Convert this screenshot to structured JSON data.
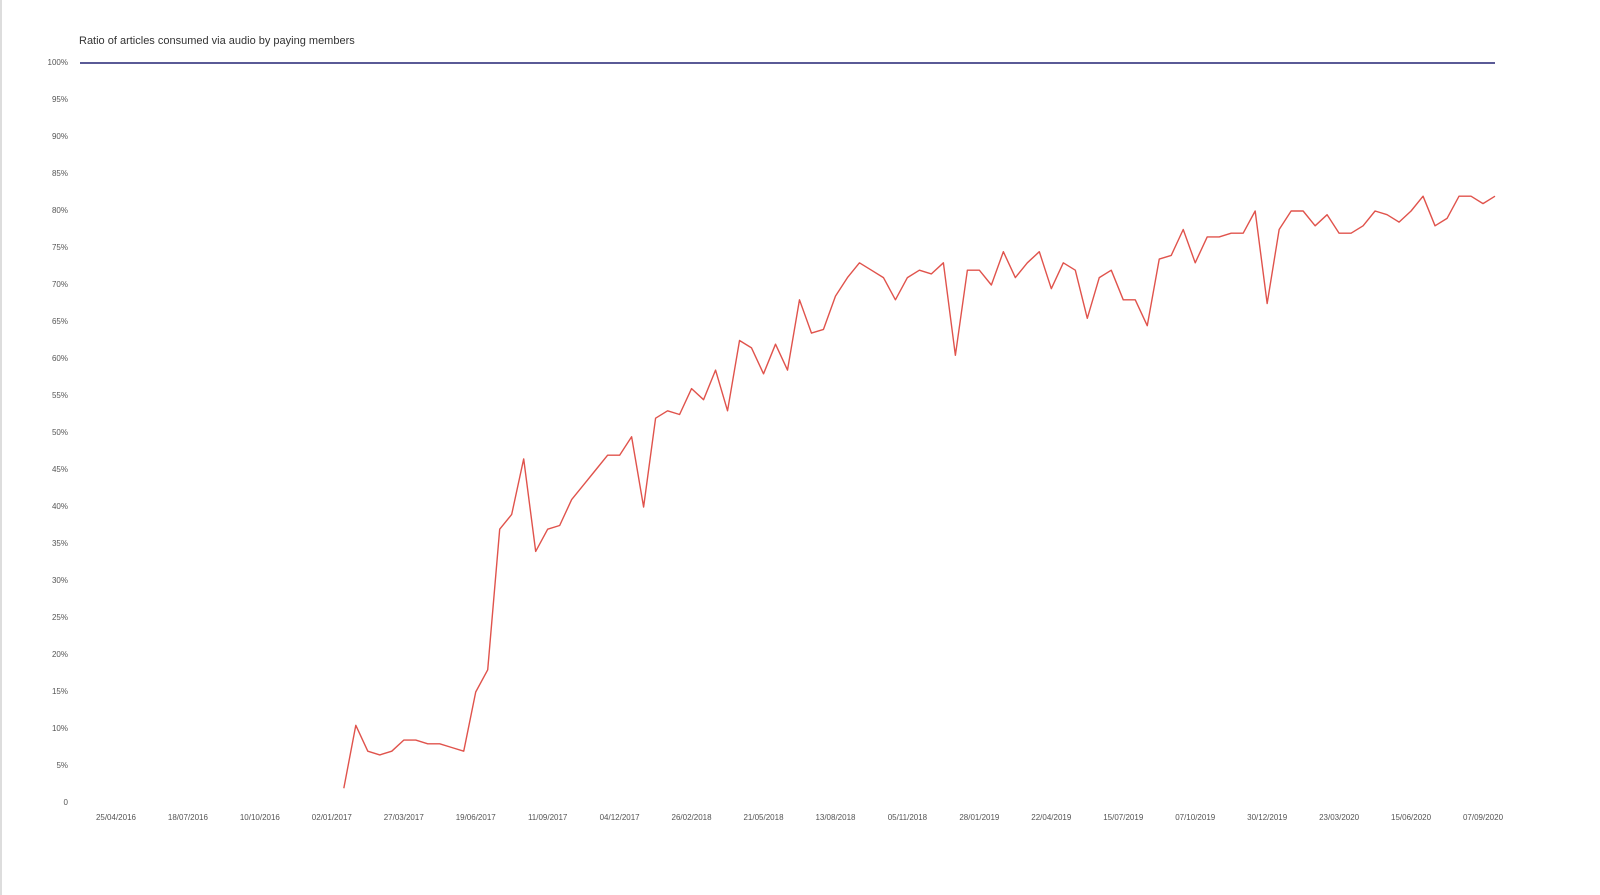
{
  "chart_data": {
    "type": "line",
    "title": "Ratio of articles consumed via audio by paying members",
    "categories": [
      null,
      null,
      null,
      "25/04/2016",
      null,
      null,
      null,
      null,
      null,
      "18/07/2016",
      null,
      null,
      null,
      null,
      null,
      "10/10/2016",
      null,
      null,
      null,
      null,
      null,
      "02/01/2017",
      null,
      null,
      null,
      null,
      null,
      "27/03/2017",
      null,
      null,
      null,
      null,
      null,
      "19/06/2017",
      null,
      null,
      null,
      null,
      null,
      "11/09/2017",
      null,
      null,
      null,
      null,
      null,
      "04/12/2017",
      null,
      null,
      null,
      null,
      null,
      "26/02/2018",
      null,
      null,
      null,
      null,
      null,
      "21/05/2018",
      null,
      null,
      null,
      null,
      null,
      "13/08/2018",
      null,
      null,
      null,
      null,
      null,
      "05/11/2018",
      null,
      null,
      null,
      null,
      null,
      "28/01/2019",
      null,
      null,
      null,
      null,
      null,
      "22/04/2019",
      null,
      null,
      null,
      null,
      null,
      "15/07/2019",
      null,
      null,
      null,
      null,
      null,
      "07/10/2019",
      null,
      null,
      null,
      null,
      null,
      "30/12/2019",
      null,
      null,
      null,
      null,
      null,
      "23/03/2020",
      null,
      null,
      null,
      null,
      null,
      "15/06/2020",
      null,
      null,
      null,
      null,
      null,
      "07/09/2020",
      null
    ],
    "series": [
      {
        "color": "#5a5a96",
        "values": [
          100,
          100,
          100,
          100,
          100,
          100,
          100,
          100,
          100,
          100,
          100,
          100,
          100,
          100,
          100,
          100,
          100,
          100,
          100,
          100,
          100,
          100,
          100,
          100,
          100,
          100,
          100,
          100,
          100,
          100,
          100,
          100,
          100,
          100,
          100,
          100,
          100,
          100,
          100,
          100,
          100,
          100,
          100,
          100,
          100,
          100,
          100,
          100,
          100,
          100,
          100,
          100,
          100,
          100,
          100,
          100,
          100,
          100,
          100,
          100,
          100,
          100,
          100,
          100,
          100,
          100,
          100,
          100,
          100,
          100,
          100,
          100,
          100,
          100,
          100,
          100,
          100,
          100,
          100,
          100,
          100,
          100,
          100,
          100,
          100,
          100,
          100,
          100,
          100,
          100,
          100,
          100,
          100,
          100,
          100,
          100,
          100,
          100,
          100,
          100,
          100,
          100,
          100,
          100,
          100,
          100,
          100,
          100,
          100,
          100,
          100,
          100,
          100,
          100,
          100,
          100,
          100,
          100,
          100
        ]
      },
      {
        "color": "#e0534c",
        "values": [
          null,
          null,
          null,
          null,
          null,
          null,
          null,
          null,
          null,
          null,
          null,
          null,
          null,
          null,
          null,
          null,
          null,
          null,
          null,
          null,
          null,
          null,
          2,
          10.5,
          7,
          6.5,
          7,
          8.5,
          8.5,
          8,
          8,
          7.5,
          7,
          15,
          18,
          37,
          39,
          46.5,
          34,
          37,
          37.5,
          41,
          43,
          45,
          47,
          47,
          49.5,
          40,
          52,
          53,
          52.5,
          56,
          54.5,
          58.5,
          53,
          62.5,
          61.5,
          58,
          62,
          58.5,
          68,
          63.5,
          64,
          68.5,
          71,
          73,
          72,
          71,
          68,
          71,
          72,
          71.5,
          73,
          60.5,
          72,
          72,
          70,
          74.5,
          71,
          73,
          74.5,
          69.5,
          73,
          72,
          65.5,
          71,
          72,
          68,
          68,
          64.5,
          73.5,
          74,
          77.5,
          73,
          76.5,
          76.5,
          77,
          77,
          80,
          67.5,
          77.5,
          80,
          80,
          78,
          79.5,
          77,
          77,
          78,
          80,
          79.5,
          78.5,
          80,
          82,
          78,
          79,
          82,
          82,
          81,
          82
        ]
      }
    ],
    "ylim": [
      0,
      100
    ],
    "yticks": [
      0,
      {
        "value": 5,
        "label": "5%"
      },
      {
        "value": 10,
        "label": "10%"
      },
      {
        "value": 15,
        "label": "15%"
      },
      {
        "value": 20,
        "label": "20%"
      },
      {
        "value": 25,
        "label": "25%"
      },
      {
        "value": 30,
        "label": "30%"
      },
      {
        "value": 35,
        "label": "35%"
      },
      {
        "value": 40,
        "label": "40%"
      },
      {
        "value": 45,
        "label": "45%"
      },
      {
        "value": 50,
        "label": "50%"
      },
      {
        "value": 55,
        "label": "55%"
      },
      {
        "value": 60,
        "label": "60%"
      },
      {
        "value": 65,
        "label": "65%"
      },
      {
        "value": 70,
        "label": "70%"
      },
      {
        "value": 75,
        "label": "75%"
      },
      {
        "value": 80,
        "label": "80%"
      },
      {
        "value": 85,
        "label": "85%"
      },
      {
        "value": 90,
        "label": "90%"
      },
      {
        "value": 95,
        "label": "95%"
      },
      {
        "value": 100,
        "label": "100%"
      }
    ],
    "grid": false
  }
}
